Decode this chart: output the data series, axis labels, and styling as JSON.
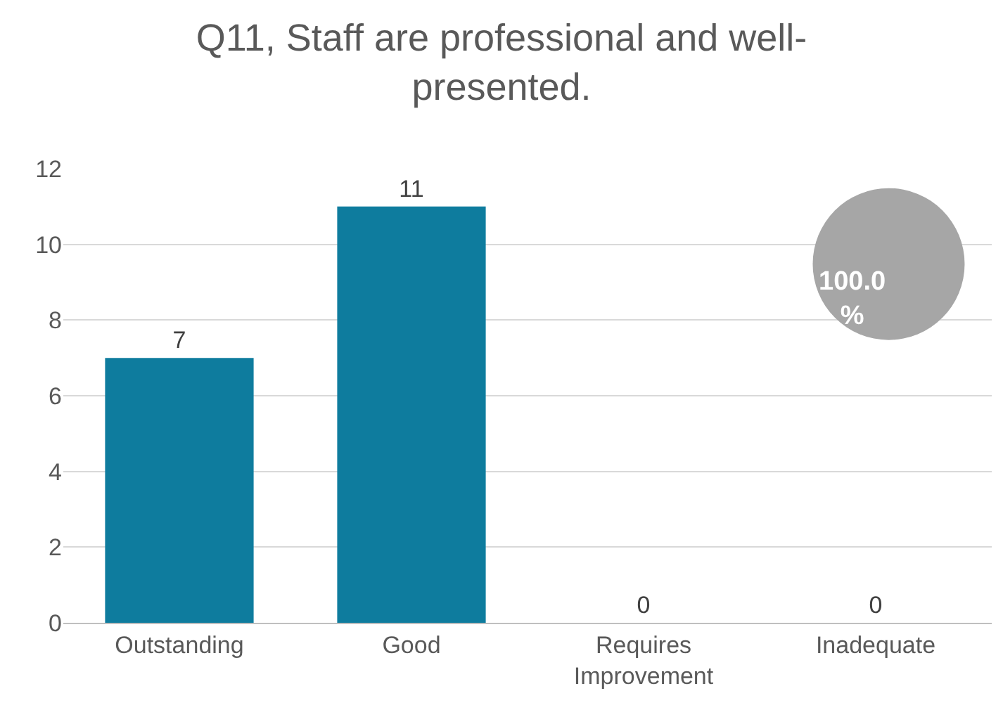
{
  "chart_data": {
    "type": "bar",
    "title": "Q11, Staff are professional and well-presented.",
    "categories": [
      "Outstanding",
      "Good",
      "Requires Improvement",
      "Inadequate"
    ],
    "values": [
      7,
      11,
      0,
      0
    ],
    "color": "#0e7c9e",
    "ylim": [
      0,
      12
    ],
    "yticks": [
      0,
      2,
      4,
      6,
      8,
      10,
      12
    ],
    "grid": "y",
    "data_labels": true,
    "annotations": [
      "100.0 %"
    ]
  }
}
